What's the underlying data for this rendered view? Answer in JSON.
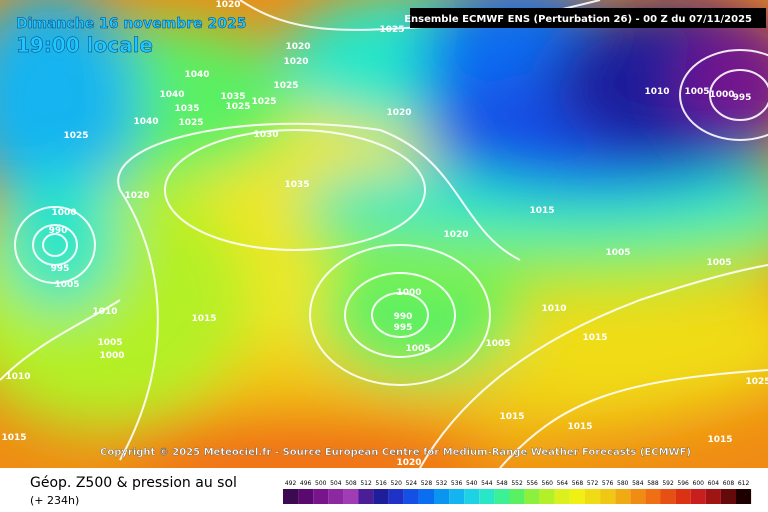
{
  "header": {
    "date": "Dimanche 16 novembre 2025",
    "time": "19:00 locale",
    "run": "Ensemble ECMWF ENS  (Perturbation 26)   -  00 Z du 07/11/2025"
  },
  "copyright": "Copyright © 2025 Meteociel.fr - Source European Centre for Medium-Range Weather Forecasts (ECMWF)",
  "footer": {
    "title": "Géop. Z500 & pression au sol",
    "lead": "(+ 234h)"
  },
  "isobar_labels": [
    "1020",
    "1025",
    "1020",
    "1020",
    "1040",
    "1025",
    "1040",
    "1035",
    "1025",
    "1025",
    "1035",
    "1020",
    "1040",
    "1025",
    "1025",
    "1030",
    "1035",
    "1020",
    "1000",
    "990",
    "995",
    "1005",
    "1020",
    "1015",
    "1010",
    "1005",
    "1000",
    "995",
    "1005",
    "1005",
    "1000",
    "990",
    "995",
    "1010",
    "1010",
    "1015",
    "1015",
    "1005",
    "1000",
    "1005",
    "1005",
    "1010",
    "1025",
    "1015",
    "1015",
    "1015",
    "1015",
    "1020"
  ],
  "scale": [
    {
      "value": 492,
      "color": "#3c0a50"
    },
    {
      "value": 496,
      "color": "#5a0a6e"
    },
    {
      "value": 500,
      "color": "#78148c"
    },
    {
      "value": 504,
      "color": "#8c28a0"
    },
    {
      "value": 508,
      "color": "#a03cb4"
    },
    {
      "value": 512,
      "color": "#4a1e96"
    },
    {
      "value": 516,
      "color": "#1e1e9a"
    },
    {
      "value": 520,
      "color": "#1e32c8"
    },
    {
      "value": 524,
      "color": "#1450e6"
    },
    {
      "value": 528,
      "color": "#0a6ef0"
    },
    {
      "value": 532,
      "color": "#0a96f0"
    },
    {
      "value": 536,
      "color": "#14b4f0"
    },
    {
      "value": 540,
      "color": "#1ed2e6"
    },
    {
      "value": 544,
      "color": "#28e6c8"
    },
    {
      "value": 548,
      "color": "#3cf096"
    },
    {
      "value": 552,
      "color": "#5af064"
    },
    {
      "value": 556,
      "color": "#8cf03c"
    },
    {
      "value": 560,
      "color": "#b4f028"
    },
    {
      "value": 564,
      "color": "#dcf01e"
    },
    {
      "value": 568,
      "color": "#f0f014"
    },
    {
      "value": 572,
      "color": "#f0dc14"
    },
    {
      "value": 576,
      "color": "#f0c814"
    },
    {
      "value": 580,
      "color": "#f0aa14"
    },
    {
      "value": 584,
      "color": "#f08c14"
    },
    {
      "value": 588,
      "color": "#f06e14"
    },
    {
      "value": 592,
      "color": "#e65014"
    },
    {
      "value": 596,
      "color": "#dc3214"
    },
    {
      "value": 600,
      "color": "#c81e1e"
    },
    {
      "value": 604,
      "color": "#a01414"
    },
    {
      "value": 608,
      "color": "#640a0a"
    },
    {
      "value": 612,
      "color": "#1e0000"
    }
  ]
}
